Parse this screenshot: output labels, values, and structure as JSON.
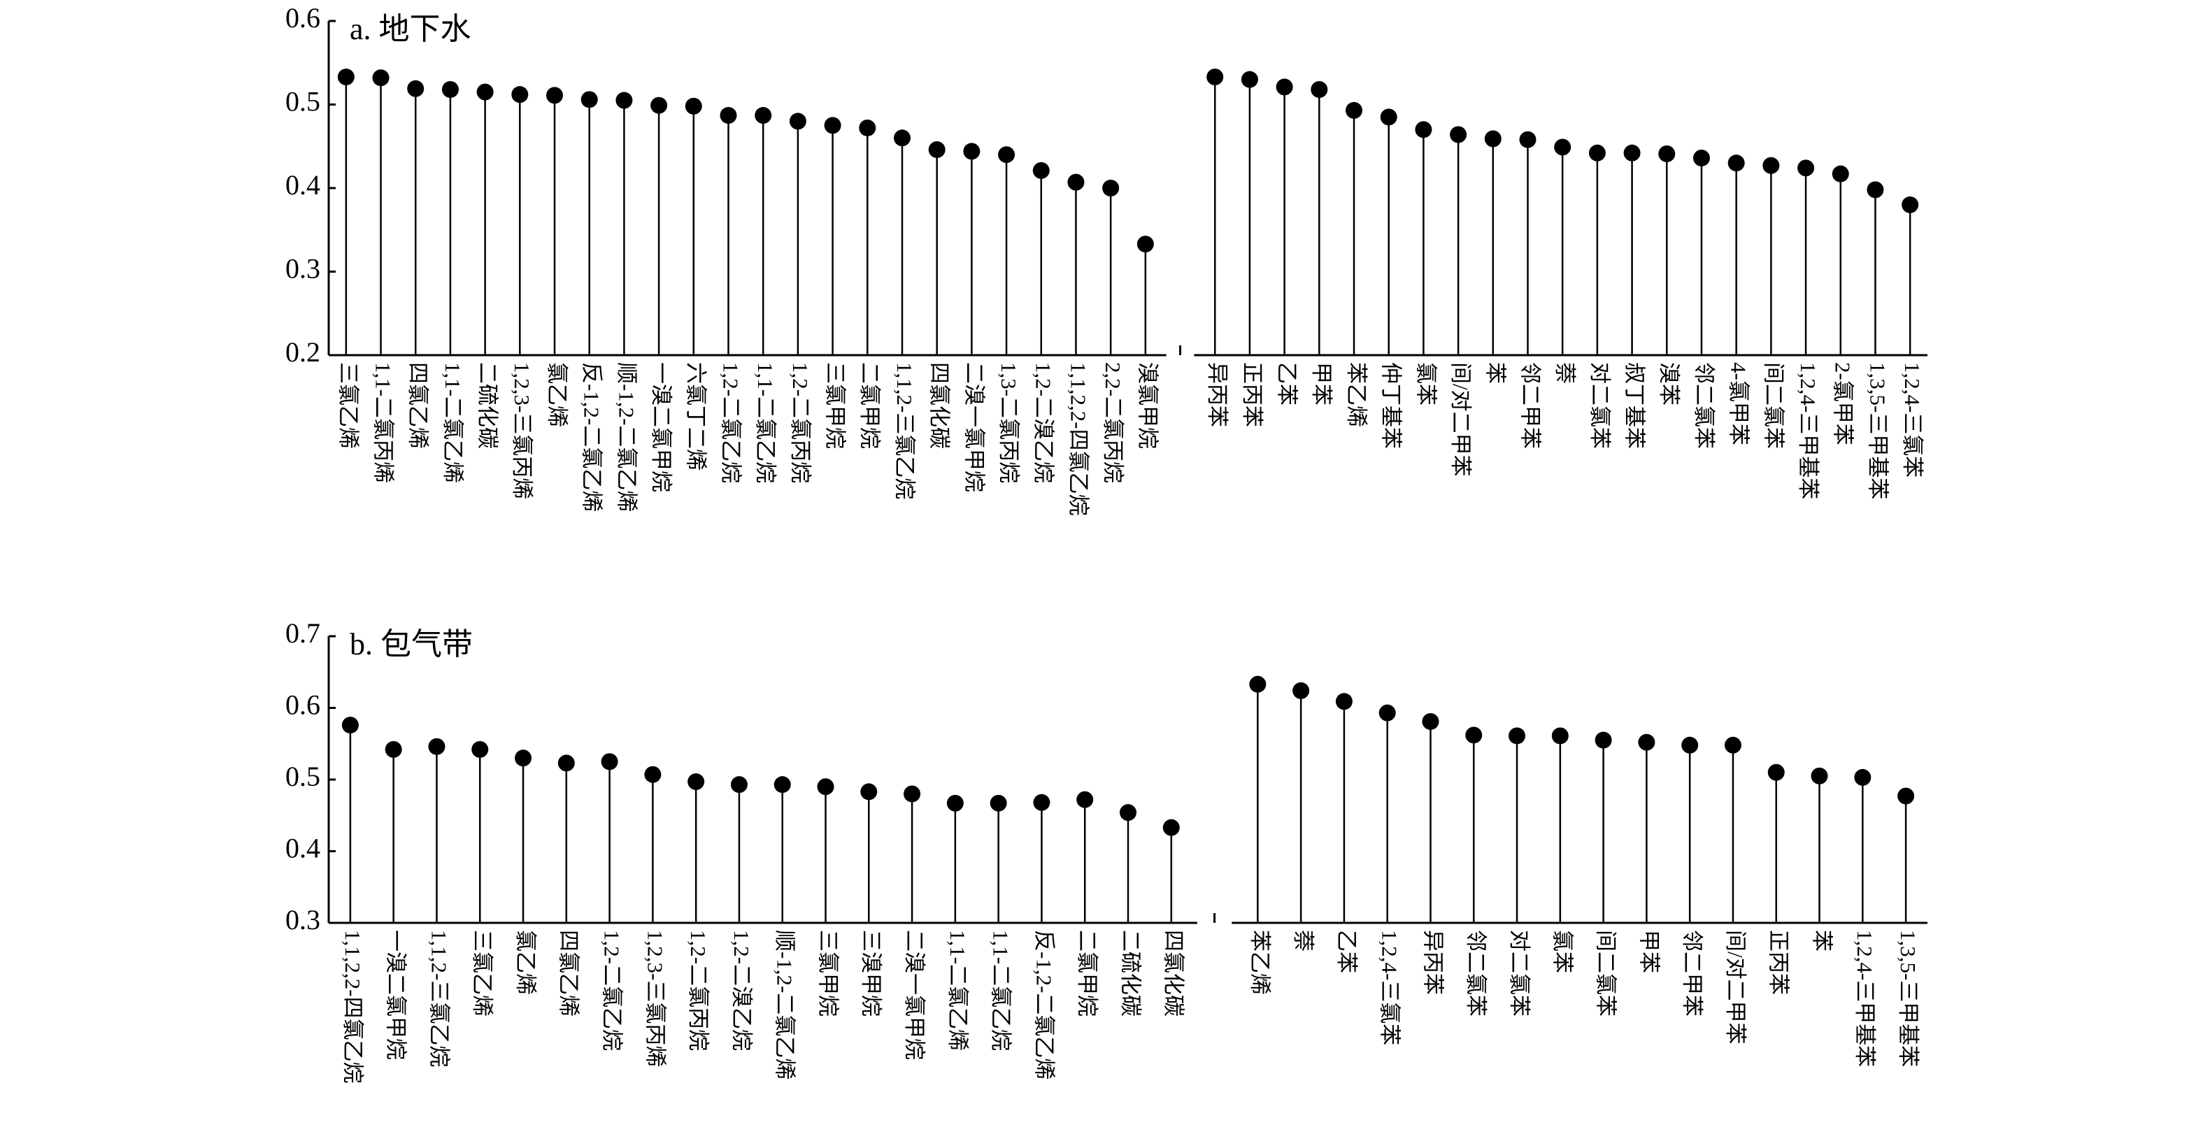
{
  "chart_data": [
    {
      "type": "lollipop",
      "title": "a. 地下水",
      "color": "#000000",
      "categories": [
        "三氯乙烯",
        "1,1-二氯丙烯",
        "四氯乙烯",
        "1,1-二氯乙烯",
        "二硫化碳",
        "1,2,3-三氯丙烯",
        "氯乙烯",
        "反-1,2-二氯乙烯",
        "顺-1,2-二氯乙烯",
        "一溴二氯甲烷",
        "六氯丁二烯",
        "1,2-二氯乙烷",
        "1,1-二氯乙烷",
        "1,2-二氯丙烷",
        "三氯甲烷",
        "二氯甲烷",
        "1,1,2-三氯乙烷",
        "四氯化碳",
        "二溴一氯甲烷",
        "1,3-二氯丙烷",
        "1,2-二溴乙烷",
        "1,1,2,2-四氯乙烷",
        "2,2-二氯丙烷",
        "溴氯甲烷",
        null,
        "异丙苯",
        "正丙苯",
        "乙苯",
        "甲苯",
        "苯乙烯",
        "仲丁基苯",
        "氯苯",
        "间/对二甲苯",
        "苯",
        "邻二甲苯",
        "萘",
        "对二氯苯",
        "叔丁基苯",
        "溴苯",
        "邻二氯苯",
        "4-氯甲苯",
        "间二氯苯",
        "1,2,4-三甲基苯",
        "2-氯甲苯",
        "1,3,5-三甲基苯",
        "1,2,4-三氯苯"
      ],
      "values": [
        0.533,
        0.532,
        0.519,
        0.518,
        0.515,
        0.512,
        0.511,
        0.506,
        0.505,
        0.499,
        0.498,
        0.487,
        0.487,
        0.48,
        0.475,
        0.472,
        0.46,
        0.446,
        0.444,
        0.44,
        0.421,
        0.407,
        0.4,
        0.333,
        null,
        0.533,
        0.53,
        0.521,
        0.518,
        0.493,
        0.485,
        0.47,
        0.464,
        0.459,
        0.458,
        0.449,
        0.442,
        0.442,
        0.441,
        0.436,
        0.43,
        0.427,
        0.424,
        0.417,
        0.398,
        0.38
      ],
      "ylim": [
        0.2,
        0.6
      ],
      "yticks": [
        0.2,
        0.3,
        0.4,
        0.5,
        0.6
      ]
    },
    {
      "type": "lollipop",
      "title": "b. 包气带",
      "color": "#000000",
      "categories": [
        "1,1,2,2-四氯乙烷",
        "一溴二氯甲烷",
        "1,1,2-三氯乙烷",
        "三氯乙烯",
        "氯乙烯",
        "四氯乙烯",
        "1,2-二氯乙烷",
        "1,2,3-三氯丙烯",
        "1,2-二氯丙烷",
        "1,2-二溴乙烷",
        "顺-1,2-二氯乙烯",
        "三氯甲烷",
        "三溴甲烷",
        "二溴一氯甲烷",
        "1,1-二氯乙烯",
        "1,1-二氯乙烷",
        "反-1,2-二氯乙烯",
        "二氯甲烷",
        "二硫化碳",
        "四氯化碳",
        null,
        "苯乙烯",
        "萘",
        "乙苯",
        "1,2,4-三氯苯",
        "异丙苯",
        "邻二氯苯",
        "对二氯苯",
        "氯苯",
        "间二氯苯",
        "甲苯",
        "邻二甲苯",
        "间/对二甲苯",
        "正丙苯",
        "苯",
        "1,2,4-三甲基苯",
        "1,3,5-三甲基苯"
      ],
      "values": [
        0.576,
        0.542,
        0.546,
        0.542,
        0.53,
        0.523,
        0.525,
        0.507,
        0.497,
        0.493,
        0.493,
        0.49,
        0.483,
        0.48,
        0.467,
        0.467,
        0.468,
        0.472,
        0.454,
        0.433,
        null,
        0.633,
        0.624,
        0.609,
        0.593,
        0.581,
        0.562,
        0.561,
        0.561,
        0.555,
        0.552,
        0.548,
        0.548,
        0.51,
        0.505,
        0.503,
        0.477
      ],
      "ylim": [
        0.3,
        0.7
      ],
      "yticks": [
        0.3,
        0.4,
        0.5,
        0.6,
        0.7
      ]
    }
  ]
}
